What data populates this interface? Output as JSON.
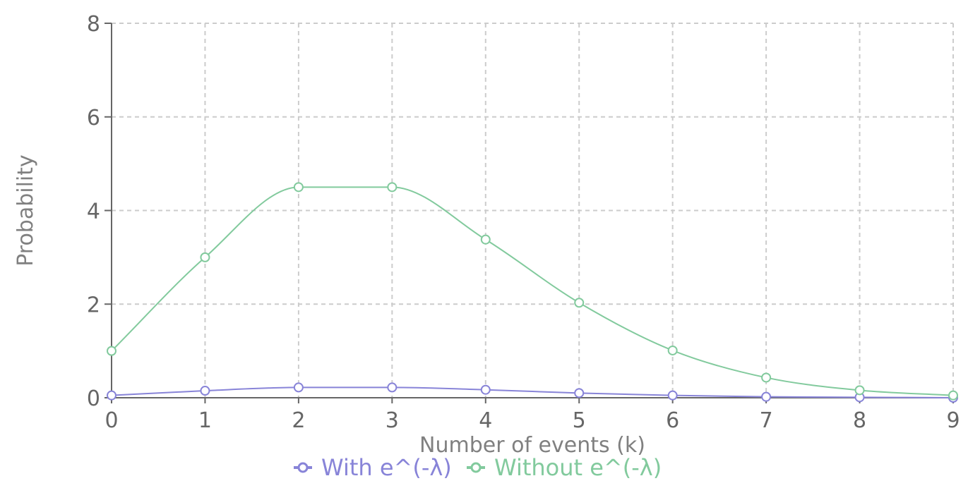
{
  "chart_data": {
    "type": "line",
    "x": [
      0,
      1,
      2,
      3,
      4,
      5,
      6,
      7,
      8,
      9
    ],
    "xticks": [
      "0",
      "1",
      "2",
      "3",
      "4",
      "5",
      "6",
      "7",
      "8",
      "9"
    ],
    "yticks": [
      "0",
      "2",
      "4",
      "6",
      "8"
    ],
    "ylim": [
      0,
      8
    ],
    "xlim": [
      0,
      9
    ],
    "xlabel": "Number of events (k)",
    "ylabel": "Probability",
    "grid": true,
    "legend_position": "bottom",
    "curve": "smooth",
    "series": [
      {
        "name": "With e^(-λ)",
        "color": "#8884d8",
        "values": [
          0.05,
          0.15,
          0.22,
          0.22,
          0.17,
          0.1,
          0.05,
          0.02,
          0.01,
          0.0
        ]
      },
      {
        "name": "Without e^(-λ)",
        "color": "#82ca9d",
        "values": [
          1.0,
          3.0,
          4.5,
          4.5,
          3.38,
          2.03,
          1.01,
          0.43,
          0.16,
          0.05
        ]
      }
    ]
  }
}
